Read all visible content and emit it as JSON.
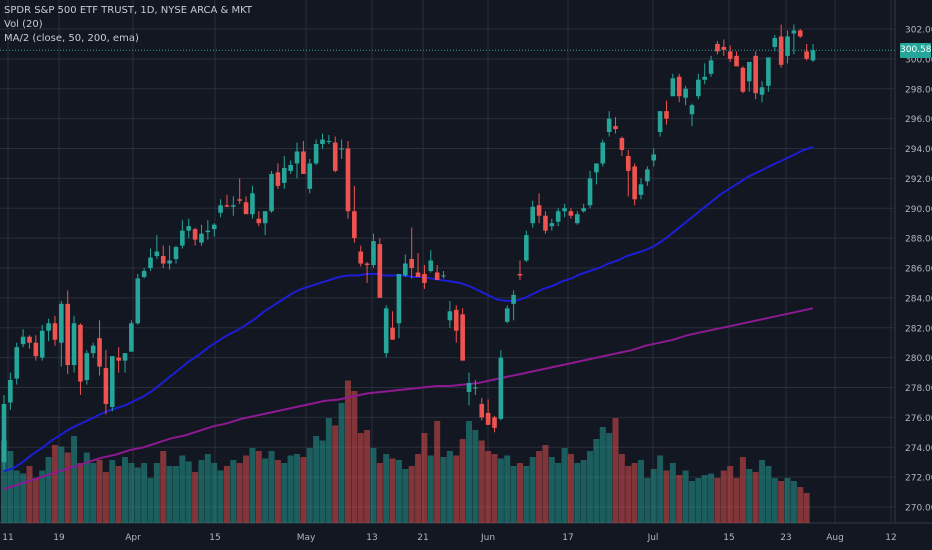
{
  "legend": {
    "symbol": "SPDR S&P 500 ETF TRUST, 1D, NYSE ARCA & MKT",
    "volume": "Vol (20)",
    "ma": "MA/2 (close, 50, 200, ema)"
  },
  "last_price_label": "300.58",
  "colors": {
    "background": "#131722",
    "grid": "#2a2e39",
    "up": "#26a69a",
    "down": "#ef5350",
    "ma50": "#1d1dd6",
    "ma200": "#8e1a92",
    "last_price_line": "#26a69a"
  },
  "chart_data": {
    "type": "candlestick",
    "y_axis": {
      "ticks": [
        "270.00",
        "272.00",
        "274.00",
        "276.00",
        "278.00",
        "280.00",
        "282.00",
        "284.00",
        "286.00",
        "288.00",
        "290.00",
        "292.00",
        "294.00",
        "296.00",
        "298.00",
        "300.00",
        "302.00"
      ],
      "range": [
        269,
        303
      ],
      "position": "right"
    },
    "x_axis": {
      "ticks": [
        "11",
        "19",
        "Apr",
        "15",
        "May",
        "13",
        "21",
        "Jun",
        "17",
        "Jul",
        "15",
        "23",
        "Aug",
        "12"
      ]
    },
    "last_price": 300.58,
    "ohlc": [
      [
        273.0,
        277.5,
        272.5,
        276.9
      ],
      [
        277.0,
        279.0,
        276.5,
        278.5
      ],
      [
        278.6,
        281.0,
        278.2,
        280.7
      ],
      [
        280.9,
        281.9,
        280.7,
        281.4
      ],
      [
        281.4,
        281.5,
        280.6,
        281.0
      ],
      [
        281.0,
        281.5,
        279.8,
        280.1
      ],
      [
        280.0,
        282.2,
        279.8,
        281.8
      ],
      [
        281.8,
        282.6,
        281.1,
        282.3
      ],
      [
        282.3,
        282.8,
        280.8,
        281.2
      ],
      [
        281.0,
        283.8,
        279.4,
        283.6
      ],
      [
        283.6,
        284.5,
        278.9,
        279.5
      ],
      [
        279.5,
        282.8,
        279.0,
        282.3
      ],
      [
        282.2,
        282.3,
        277.5,
        278.4
      ],
      [
        278.5,
        280.5,
        278.2,
        280.3
      ],
      [
        280.3,
        281.0,
        280.0,
        280.8
      ],
      [
        281.3,
        282.5,
        278.8,
        279.4
      ],
      [
        279.3,
        280.5,
        276.2,
        276.9
      ],
      [
        276.7,
        280.0,
        276.4,
        280.1
      ],
      [
        280.0,
        280.7,
        279.0,
        279.8
      ],
      [
        279.8,
        280.3,
        279.0,
        280.3
      ],
      [
        280.4,
        282.5,
        280.4,
        282.3
      ],
      [
        282.3,
        285.6,
        282.2,
        285.3
      ],
      [
        285.4,
        286.0,
        285.3,
        285.8
      ],
      [
        286.0,
        287.3,
        285.8,
        286.7
      ],
      [
        286.8,
        288.2,
        286.6,
        287.1
      ],
      [
        286.8,
        287.5,
        286.0,
        286.3
      ],
      [
        286.3,
        287.5,
        285.9,
        286.5
      ],
      [
        286.6,
        287.5,
        286.3,
        287.4
      ],
      [
        287.5,
        289.2,
        287.3,
        288.5
      ],
      [
        288.5,
        289.3,
        288.0,
        288.8
      ],
      [
        288.6,
        288.7,
        287.5,
        287.9
      ],
      [
        287.7,
        288.9,
        287.5,
        288.3
      ],
      [
        288.4,
        289.2,
        287.9,
        288.5
      ],
      [
        288.6,
        289.0,
        288.1,
        288.9
      ],
      [
        289.7,
        290.6,
        289.4,
        290.2
      ],
      [
        290.2,
        290.9,
        290.1,
        290.1
      ],
      [
        290.1,
        290.8,
        289.5,
        290.2
      ],
      [
        290.6,
        292.0,
        290.3,
        290.5
      ],
      [
        290.4,
        290.8,
        289.8,
        289.6
      ],
      [
        289.6,
        291.5,
        289.3,
        291.0
      ],
      [
        289.3,
        289.8,
        288.8,
        289.0
      ],
      [
        289.0,
        289.8,
        288.2,
        289.8
      ],
      [
        289.8,
        292.5,
        289.7,
        292.3
      ],
      [
        292.4,
        293.0,
        291.3,
        291.5
      ],
      [
        291.7,
        293.5,
        291.3,
        292.7
      ],
      [
        292.5,
        293.2,
        292.3,
        292.9
      ],
      [
        293.0,
        294.4,
        292.0,
        293.8
      ],
      [
        293.8,
        294.5,
        292.3,
        292.3
      ],
      [
        291.3,
        293.3,
        291.0,
        293.0
      ],
      [
        293.0,
        294.6,
        292.9,
        294.3
      ],
      [
        294.3,
        295.0,
        294.0,
        294.6
      ],
      [
        294.5,
        294.9,
        294.3,
        294.5
      ],
      [
        294.4,
        294.8,
        292.4,
        292.5
      ],
      [
        294.0,
        294.6,
        293.3,
        294.0
      ],
      [
        294.0,
        294.5,
        289.3,
        289.8
      ],
      [
        289.8,
        291.5,
        287.7,
        288.0
      ],
      [
        287.1,
        287.5,
        286.1,
        286.3
      ],
      [
        286.3,
        286.4,
        285.0,
        286.2
      ],
      [
        286.2,
        288.3,
        286.0,
        287.8
      ],
      [
        287.6,
        288.0,
        284.0,
        284.0
      ],
      [
        280.3,
        283.5,
        280.0,
        283.3
      ],
      [
        282.0,
        283.1,
        281.2,
        281.2
      ],
      [
        282.3,
        285.5,
        281.3,
        285.6
      ],
      [
        285.5,
        286.9,
        285.4,
        286.3
      ],
      [
        286.6,
        288.7,
        285.3,
        286.0
      ],
      [
        285.7,
        287.0,
        285.5,
        285.4
      ],
      [
        285.6,
        286.2,
        284.6,
        285.0
      ],
      [
        285.8,
        287.2,
        285.7,
        286.5
      ],
      [
        285.7,
        286.2,
        285.3,
        285.2
      ],
      [
        285.5,
        285.8,
        285.3,
        285.5
      ],
      [
        282.5,
        283.8,
        282.0,
        283.1
      ],
      [
        283.2,
        283.5,
        281.0,
        281.8
      ],
      [
        282.9,
        283.3,
        279.8,
        279.8
      ],
      [
        277.7,
        279.0,
        276.8,
        278.3
      ],
      [
        278.0,
        278.5,
        277.5,
        278.0
      ],
      [
        276.9,
        277.3,
        275.8,
        276.0
      ],
      [
        276.3,
        277.2,
        275.5,
        275.5
      ],
      [
        276.0,
        276.1,
        275.0,
        275.3
      ],
      [
        275.9,
        280.5,
        275.8,
        280.0
      ],
      [
        282.4,
        283.5,
        282.3,
        283.3
      ],
      [
        283.6,
        284.5,
        282.5,
        284.2
      ],
      [
        285.6,
        286.5,
        285.2,
        285.5
      ],
      [
        286.5,
        288.5,
        286.4,
        288.2
      ],
      [
        289.0,
        290.5,
        288.7,
        290.1
      ],
      [
        290.2,
        291.0,
        289.0,
        289.5
      ],
      [
        289.5,
        289.8,
        288.3,
        288.5
      ],
      [
        288.8,
        289.3,
        288.5,
        289.0
      ],
      [
        289.1,
        290.0,
        288.8,
        289.8
      ],
      [
        289.8,
        290.3,
        289.4,
        290.0
      ],
      [
        289.8,
        290.0,
        289.3,
        289.5
      ],
      [
        289.0,
        289.8,
        288.9,
        289.6
      ],
      [
        289.8,
        290.3,
        289.7,
        290.0
      ],
      [
        290.2,
        292.5,
        290.0,
        292.0
      ],
      [
        292.4,
        293.0,
        291.6,
        293.0
      ],
      [
        293.0,
        294.6,
        292.8,
        294.4
      ],
      [
        295.1,
        296.5,
        294.8,
        296.0
      ],
      [
        295.5,
        296.1,
        295.0,
        295.3
      ],
      [
        294.7,
        294.8,
        293.5,
        293.9
      ],
      [
        293.5,
        293.9,
        290.8,
        292.5
      ],
      [
        292.8,
        293.0,
        290.2,
        290.6
      ],
      [
        290.9,
        292.0,
        290.6,
        291.6
      ],
      [
        291.8,
        292.8,
        291.5,
        292.6
      ],
      [
        293.2,
        294.0,
        292.8,
        293.6
      ],
      [
        295.1,
        296.5,
        294.8,
        296.5
      ],
      [
        296.5,
        297.2,
        295.6,
        296.0
      ],
      [
        297.5,
        299.0,
        297.5,
        298.7
      ],
      [
        298.8,
        299.0,
        297.1,
        297.5
      ],
      [
        297.4,
        298.2,
        296.9,
        298.0
      ],
      [
        296.3,
        297.0,
        295.5,
        296.9
      ],
      [
        297.5,
        299.0,
        297.3,
        298.6
      ],
      [
        298.6,
        299.7,
        298.3,
        298.8
      ],
      [
        299.0,
        300.2,
        298.8,
        299.9
      ],
      [
        301.0,
        301.2,
        300.3,
        300.5
      ],
      [
        300.8,
        301.3,
        300.2,
        300.6
      ],
      [
        300.5,
        300.9,
        299.8,
        300.0
      ],
      [
        300.2,
        300.5,
        299.5,
        299.5
      ],
      [
        299.4,
        299.5,
        297.7,
        297.8
      ],
      [
        298.5,
        299.5,
        297.8,
        299.8
      ],
      [
        300.2,
        300.5,
        297.3,
        297.7
      ],
      [
        297.6,
        298.5,
        297.1,
        298.1
      ],
      [
        298.2,
        300.0,
        297.8,
        300.1
      ],
      [
        300.8,
        301.6,
        300.5,
        301.4
      ],
      [
        301.5,
        302.3,
        299.4,
        299.6
      ],
      [
        300.2,
        301.9,
        299.7,
        301.5
      ],
      [
        301.7,
        302.3,
        300.3,
        301.9
      ],
      [
        301.9,
        302.0,
        301.4,
        301.5
      ],
      [
        300.5,
        301.0,
        299.9,
        300.0
      ],
      [
        299.9,
        301.0,
        299.8,
        300.58
      ]
    ],
    "series": [
      {
        "name": "MA 50 (ema)",
        "values": [
          272.4,
          272.6,
          273.0,
          273.5,
          273.9,
          274.4,
          274.8,
          275.2,
          275.5,
          275.8,
          276.1,
          276.4,
          276.6,
          276.8,
          277.1,
          277.4,
          277.8,
          278.3,
          278.8,
          279.3,
          279.8,
          280.2,
          280.7,
          281.1,
          281.5,
          281.8,
          282.2,
          282.6,
          283.1,
          283.5,
          283.9,
          284.3,
          284.6,
          284.8,
          285.0,
          285.2,
          285.4,
          285.5,
          285.5,
          285.6,
          285.6,
          285.5,
          285.5,
          285.5,
          285.4,
          285.4,
          285.3,
          285.2,
          285.1,
          285.0,
          284.8,
          284.5,
          284.2,
          283.9,
          283.8,
          283.8,
          284.0,
          284.3,
          284.6,
          284.8,
          285.1,
          285.3,
          285.6,
          285.8,
          286.0,
          286.3,
          286.5,
          286.8,
          287.0,
          287.2,
          287.5,
          287.9,
          288.4,
          288.9,
          289.4,
          289.9,
          290.4,
          290.9,
          291.3,
          291.7,
          292.1,
          292.4,
          292.7,
          293.0,
          293.3,
          293.6,
          293.9,
          294.1
        ]
      },
      {
        "name": "MA 200 (ema)",
        "values": [
          271.2,
          271.5,
          271.8,
          272.1,
          272.4,
          272.7,
          273.0,
          273.3,
          273.5,
          273.8,
          274.0,
          274.3,
          274.6,
          274.8,
          275.1,
          275.4,
          275.6,
          275.9,
          276.1,
          276.3,
          276.5,
          276.7,
          276.9,
          277.1,
          277.2,
          277.4,
          277.6,
          277.7,
          277.8,
          277.9,
          278.0,
          278.1,
          278.1,
          278.2,
          278.3,
          278.5,
          278.7,
          278.9,
          279.1,
          279.3,
          279.5,
          279.7,
          279.9,
          280.1,
          280.3,
          280.5,
          280.8,
          281.0,
          281.2,
          281.5,
          281.7,
          281.9,
          282.1,
          282.3,
          282.5,
          282.7,
          282.9,
          283.1,
          283.3
        ]
      }
    ],
    "volume": [
      55,
      48,
      35,
      33,
      38,
      30,
      35,
      44,
      52,
      51,
      47,
      58,
      40,
      47,
      40,
      42,
      34,
      42,
      38,
      44,
      40,
      37,
      40,
      30,
      40,
      48,
      38,
      38,
      45,
      41,
      34,
      42,
      46,
      40,
      35,
      38,
      42,
      40,
      45,
      50,
      48,
      43,
      48,
      42,
      40,
      45,
      46,
      44,
      50,
      58,
      55,
      70,
      65,
      80,
      95,
      88,
      60,
      62,
      50,
      40,
      46,
      43,
      42,
      36,
      38,
      46,
      60,
      45,
      68,
      44,
      48,
      45,
      56,
      68,
      62,
      55,
      48,
      46,
      43,
      45,
      38,
      40,
      38,
      44,
      48,
      52,
      44,
      40,
      50,
      46,
      40,
      42,
      48,
      56,
      64,
      60,
      70,
      46,
      38,
      40,
      42,
      30,
      36,
      45,
      35,
      40,
      32,
      35,
      28,
      30,
      32,
      33,
      30,
      35,
      38,
      30,
      44,
      36,
      34,
      42,
      38,
      30,
      28,
      30,
      28,
      24,
      20
    ]
  }
}
